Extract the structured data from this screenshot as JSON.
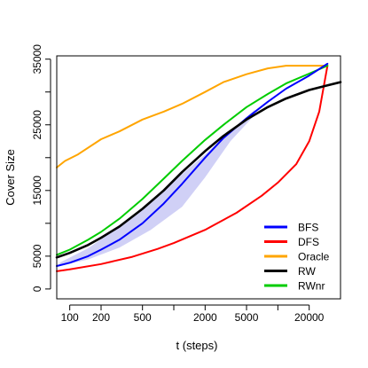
{
  "chart_data": {
    "type": "line",
    "title": "",
    "xlabel": "t (steps)",
    "ylabel": "Cover Size",
    "x_scale": "log",
    "xlim": [
      75,
      40000
    ],
    "ylim": [
      -1500,
      35500
    ],
    "x_ticks": [
      {
        "value": 100,
        "label": "100"
      },
      {
        "value": 200,
        "label": "200"
      },
      {
        "value": 500,
        "label": "500"
      },
      {
        "value": 1000,
        "label": ""
      },
      {
        "value": 2000,
        "label": "2000"
      },
      {
        "value": 5000,
        "label": "5000"
      },
      {
        "value": 10000,
        "label": ""
      },
      {
        "value": 20000,
        "label": "20000"
      }
    ],
    "y_ticks": [
      {
        "value": 0,
        "label": "0"
      },
      {
        "value": 5000,
        "label": "5000"
      },
      {
        "value": 10000,
        "label": ""
      },
      {
        "value": 15000,
        "label": "15000"
      },
      {
        "value": 20000,
        "label": ""
      },
      {
        "value": 25000,
        "label": "25000"
      },
      {
        "value": 30000,
        "label": ""
      },
      {
        "value": 35000,
        "label": "35000"
      }
    ],
    "legend_position": "bottom-right",
    "grid": false,
    "band": {
      "series": "BFS",
      "color": "#c8c8f4",
      "points": [
        {
          "x": 80,
          "lo": 3500,
          "hi": 4000
        },
        {
          "x": 150,
          "lo": 4500,
          "hi": 6200
        },
        {
          "x": 300,
          "lo": 6300,
          "hi": 9500
        },
        {
          "x": 600,
          "lo": 9000,
          "hi": 13500
        },
        {
          "x": 1200,
          "lo": 12500,
          "hi": 17500
        },
        {
          "x": 2000,
          "lo": 17000,
          "hi": 20500
        },
        {
          "x": 3500,
          "lo": 22500,
          "hi": 24000
        },
        {
          "x": 6000,
          "lo": 26500,
          "hi": 27300
        }
      ]
    },
    "series": [
      {
        "name": "BFS",
        "color": "#0000ff",
        "points": [
          [
            75,
            3500
          ],
          [
            100,
            4000
          ],
          [
            150,
            5000
          ],
          [
            200,
            6000
          ],
          [
            300,
            7500
          ],
          [
            500,
            10000
          ],
          [
            800,
            13000
          ],
          [
            1200,
            16000
          ],
          [
            2000,
            20000
          ],
          [
            3000,
            23000
          ],
          [
            5000,
            26000
          ],
          [
            8000,
            28500
          ],
          [
            12000,
            30500
          ],
          [
            20000,
            32500
          ],
          [
            30000,
            34300
          ]
        ]
      },
      {
        "name": "DFS",
        "color": "#ff0000",
        "points": [
          [
            75,
            2700
          ],
          [
            100,
            3000
          ],
          [
            200,
            3800
          ],
          [
            400,
            4900
          ],
          [
            700,
            6100
          ],
          [
            1000,
            7000
          ],
          [
            2000,
            9000
          ],
          [
            4000,
            11600
          ],
          [
            7000,
            14200
          ],
          [
            10000,
            16200
          ],
          [
            15000,
            19000
          ],
          [
            20000,
            22500
          ],
          [
            25000,
            27000
          ],
          [
            30000,
            34000
          ]
        ]
      },
      {
        "name": "Oracle",
        "color": "#ffa500",
        "points": [
          [
            75,
            18500
          ],
          [
            90,
            19500
          ],
          [
            120,
            20500
          ],
          [
            200,
            22800
          ],
          [
            300,
            24000
          ],
          [
            500,
            25800
          ],
          [
            800,
            27000
          ],
          [
            1200,
            28200
          ],
          [
            2000,
            30000
          ],
          [
            3000,
            31500
          ],
          [
            5000,
            32700
          ],
          [
            8000,
            33600
          ],
          [
            12000,
            34000
          ],
          [
            20000,
            34000
          ],
          [
            30000,
            34000
          ]
        ]
      },
      {
        "name": "RW",
        "color": "#000000",
        "points": [
          [
            75,
            4800
          ],
          [
            100,
            5500
          ],
          [
            150,
            6700
          ],
          [
            200,
            7800
          ],
          [
            300,
            9500
          ],
          [
            500,
            12200
          ],
          [
            800,
            15000
          ],
          [
            1200,
            17800
          ],
          [
            2000,
            21000
          ],
          [
            3000,
            23300
          ],
          [
            5000,
            25800
          ],
          [
            8000,
            27700
          ],
          [
            12000,
            29000
          ],
          [
            20000,
            30300
          ],
          [
            30000,
            31000
          ],
          [
            40000,
            31500
          ]
        ]
      },
      {
        "name": "RWnr",
        "color": "#00cc00",
        "points": [
          [
            75,
            5200
          ],
          [
            100,
            6000
          ],
          [
            150,
            7500
          ],
          [
            200,
            8700
          ],
          [
            300,
            10700
          ],
          [
            500,
            13700
          ],
          [
            800,
            16800
          ],
          [
            1200,
            19500
          ],
          [
            2000,
            22700
          ],
          [
            3000,
            25000
          ],
          [
            5000,
            27700
          ],
          [
            8000,
            29700
          ],
          [
            12000,
            31300
          ],
          [
            20000,
            32800
          ],
          [
            30000,
            34000
          ]
        ]
      }
    ]
  }
}
